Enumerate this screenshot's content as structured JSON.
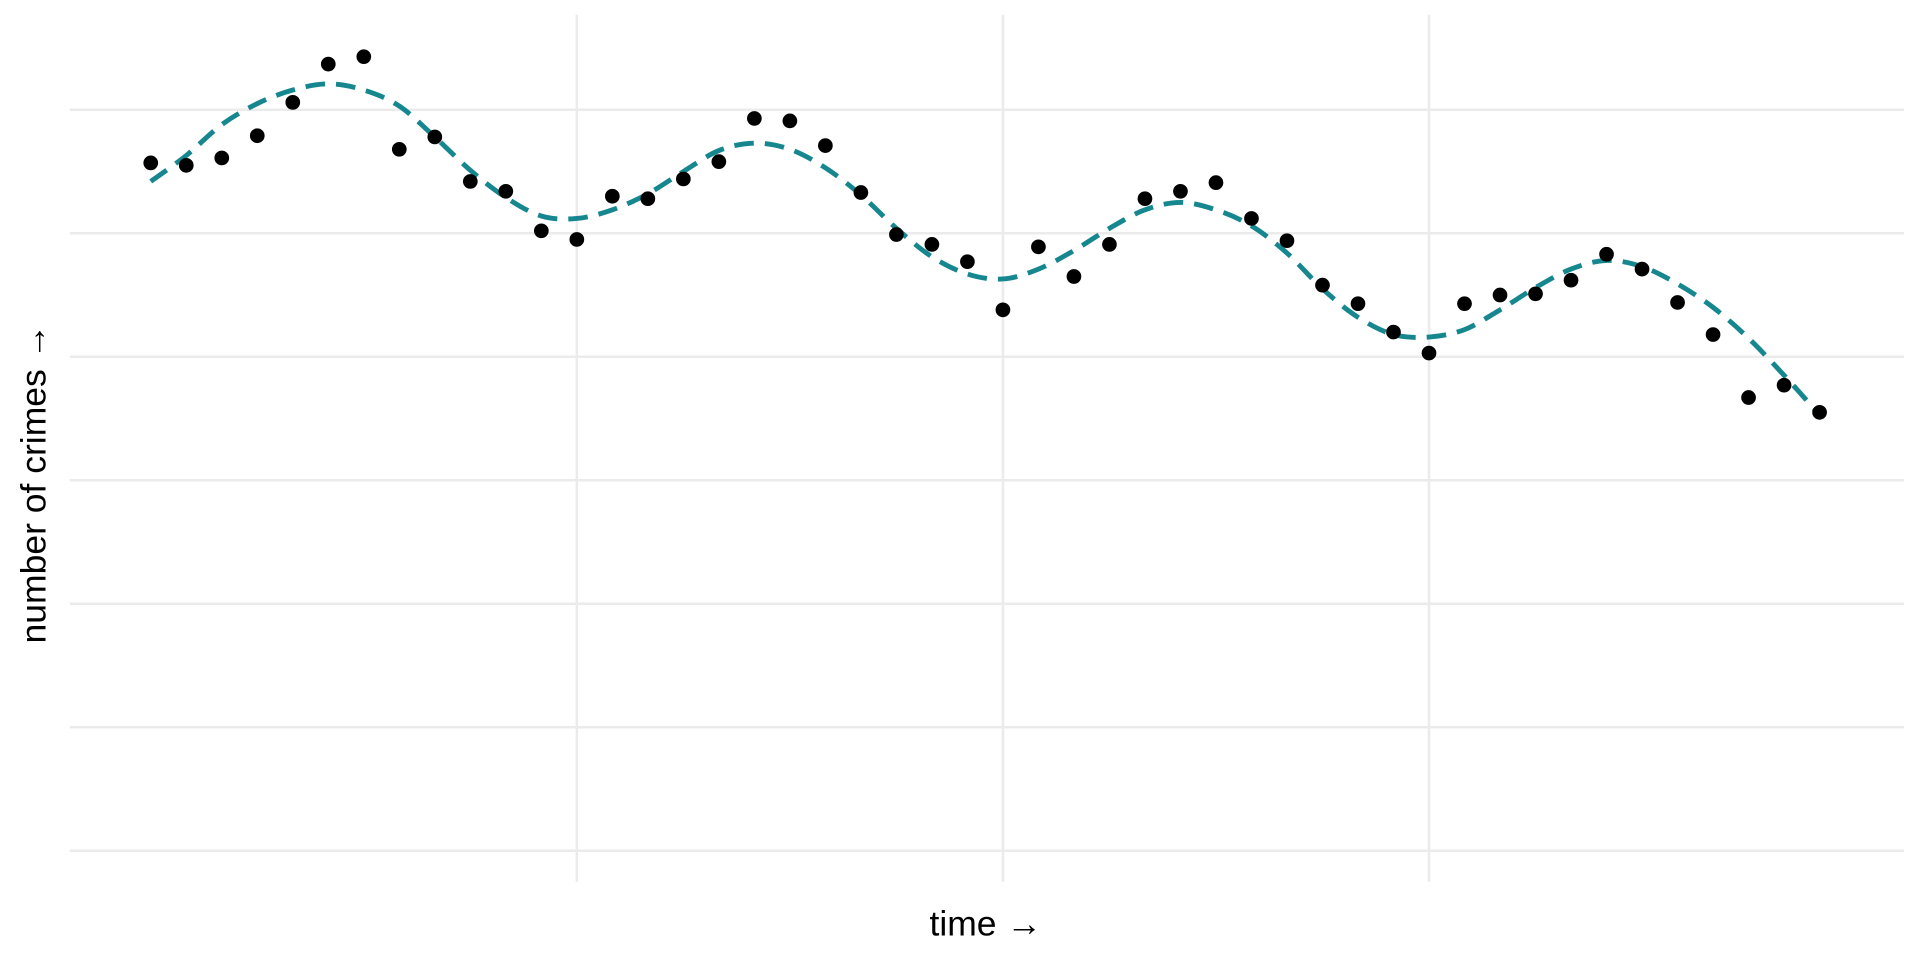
{
  "chart_data": {
    "type": "scatter",
    "title": "",
    "xlabel": "time →",
    "ylabel": "number of crimes →",
    "xlim": [
      -1.28,
      50.38
    ],
    "ylim": [
      -0.25,
      6.77
    ],
    "x_gridlines": [
      13,
      25,
      37
    ],
    "y_gridlines": [
      0,
      1,
      2,
      3,
      4,
      5,
      6
    ],
    "tick_labels_shown": false,
    "grid": true,
    "colors": {
      "points": "#000000",
      "trend": "#16878f",
      "grid": "#ebebeb"
    },
    "series": [
      {
        "kind": "points",
        "x": [
          1,
          2,
          3,
          4,
          5,
          6,
          7,
          8,
          9,
          10,
          11,
          12,
          13,
          14,
          15,
          16,
          17,
          18,
          19,
          20,
          21,
          22,
          23,
          24,
          25,
          26,
          27,
          28,
          29,
          30,
          31,
          32,
          33,
          34,
          35,
          36,
          37,
          38,
          39,
          40,
          41,
          42,
          43,
          44,
          45,
          46,
          47,
          48
        ],
        "y": [
          5.57,
          5.55,
          5.61,
          5.79,
          6.06,
          6.37,
          6.43,
          5.68,
          5.78,
          5.42,
          5.34,
          5.02,
          4.95,
          5.3,
          5.28,
          5.44,
          5.58,
          5.93,
          5.91,
          5.71,
          5.33,
          4.99,
          4.91,
          4.77,
          4.38,
          4.89,
          4.65,
          4.91,
          5.28,
          5.34,
          5.41,
          5.12,
          4.94,
          4.58,
          4.43,
          4.2,
          4.03,
          4.43,
          4.5,
          4.51,
          4.62,
          4.83,
          4.71,
          4.44,
          4.18,
          3.67,
          3.77,
          3.55
        ]
      },
      {
        "kind": "smooth-dashed-line",
        "x": [
          1,
          2,
          3,
          4,
          5,
          6,
          7,
          8,
          9,
          10,
          11,
          12,
          13,
          14,
          15,
          16,
          17,
          18,
          19,
          20,
          21,
          22,
          23,
          24,
          25,
          26,
          27,
          28,
          29,
          30,
          31,
          32,
          33,
          34,
          35,
          36,
          37,
          38,
          39,
          40,
          41,
          42,
          43,
          44,
          45,
          46,
          47,
          48
        ],
        "y": [
          5.42,
          5.63,
          5.88,
          6.05,
          6.16,
          6.21,
          6.16,
          6.03,
          5.78,
          5.51,
          5.29,
          5.14,
          5.12,
          5.19,
          5.32,
          5.5,
          5.67,
          5.73,
          5.68,
          5.53,
          5.31,
          5.04,
          4.81,
          4.67,
          4.63,
          4.71,
          4.86,
          5.04,
          5.19,
          5.25,
          5.19,
          5.06,
          4.84,
          4.55,
          4.32,
          4.18,
          4.16,
          4.22,
          4.38,
          4.56,
          4.71,
          4.78,
          4.73,
          4.59,
          4.4,
          4.15,
          3.85,
          3.53
        ]
      }
    ]
  }
}
